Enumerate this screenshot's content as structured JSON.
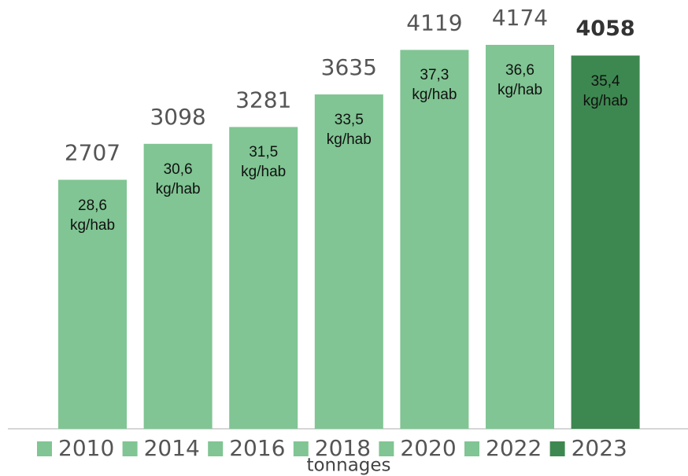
{
  "chart_data": {
    "type": "bar",
    "x_label": "tonnages",
    "series": [
      {
        "name": "2010",
        "color": "#80c593",
        "values": [
          2707
        ],
        "inner_label": "28,6 kg/hab"
      },
      {
        "name": "2014",
        "color": "#80c593",
        "values": [
          3098
        ],
        "inner_label": "30,6 kg/hab"
      },
      {
        "name": "2016",
        "color": "#80c593",
        "values": [
          3281
        ],
        "inner_label": "31,5 kg/hab"
      },
      {
        "name": "2018",
        "color": "#80c593",
        "values": [
          3635
        ],
        "inner_label": "33,5 kg/hab"
      },
      {
        "name": "2020",
        "color": "#80c593",
        "values": [
          4119
        ],
        "inner_label": "37,3 kg/hab"
      },
      {
        "name": "2022",
        "color": "#80c593",
        "values": [
          4174
        ],
        "inner_label": "36,6 kg/hab"
      },
      {
        "name": "2023",
        "color": "#3d8850",
        "values": [
          4058
        ],
        "inner_label": "35,4 kg/hab",
        "bold": true
      }
    ],
    "legend": "bottom"
  }
}
